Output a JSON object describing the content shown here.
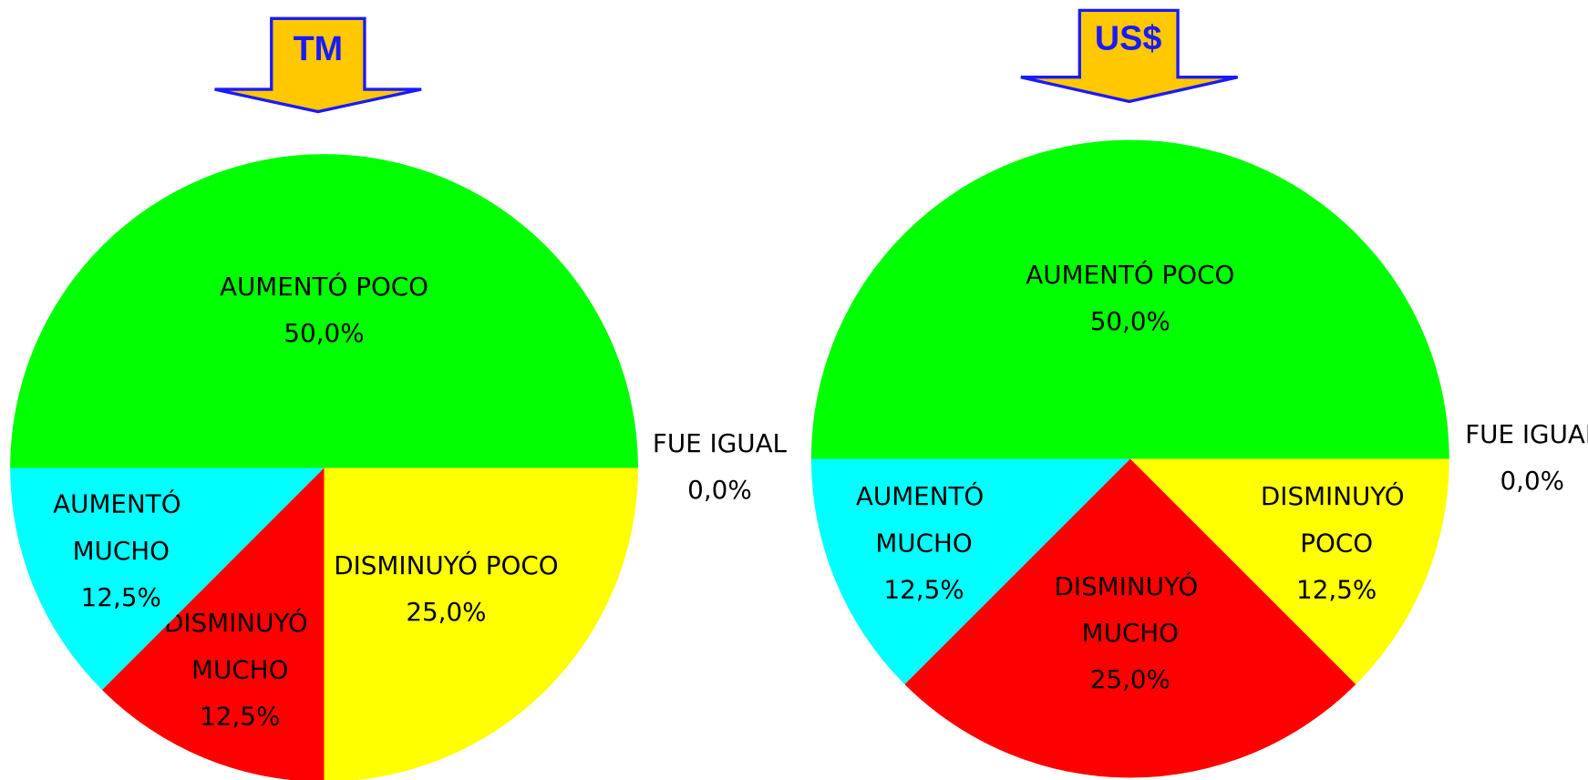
{
  "chart_data": [
    {
      "type": "pie",
      "title": "TM",
      "categories": [
        "AUMENTÓ POCO",
        "FUE IGUAL",
        "DISMINUYÓ POCO",
        "DISMINUYÓ MUCHO",
        "AUMENTÓ MUCHO"
      ],
      "values": [
        50,
        0,
        25,
        12.5,
        12.5
      ],
      "value_labels": [
        "50,0%",
        "0,0%",
        "25,0%",
        "12,5%",
        "12,5%"
      ],
      "colors": [
        "#00ff00",
        "#ff00ff",
        "#ffff00",
        "#ff0000",
        "#00ffff"
      ]
    },
    {
      "type": "pie",
      "title": "US$",
      "categories": [
        "AUMENTÓ POCO",
        "FUE IGUAL",
        "DISMINUYÓ POCO",
        "DISMINUYÓ MUCHO",
        "AUMENTÓ MUCHO"
      ],
      "values": [
        50,
        0,
        12.5,
        25,
        12.5
      ],
      "value_labels": [
        "50,0%",
        "0,0%",
        "12,5%",
        "25,0%",
        "12,5%"
      ],
      "colors": [
        "#00ff00",
        "#ff00ff",
        "#ffff00",
        "#ff0000",
        "#00ffff"
      ]
    }
  ]
}
